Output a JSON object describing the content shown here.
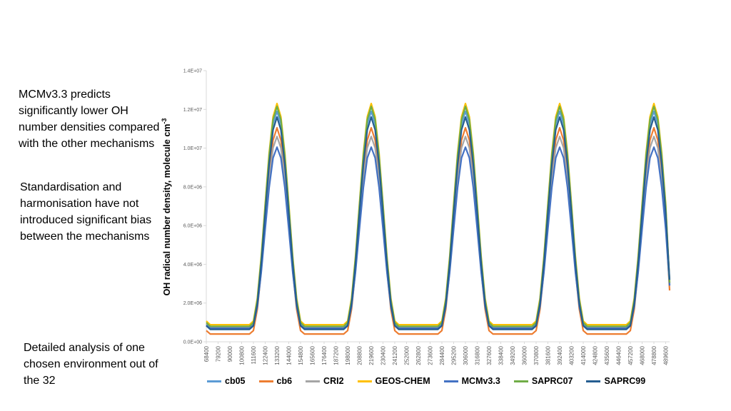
{
  "notes": {
    "n1": "MCMv3.3 predicts significantly lower OH number densities compared with the other mechanisms",
    "n2": "Standardisation and harmonisation have not introduced significant bias between the mechanisms",
    "n3": "Detailed analysis of one chosen environment out of the 32"
  },
  "chart_data": {
    "type": "line",
    "title": "",
    "xlabel": "",
    "ylabel": "OH radical number density, molecule cm",
    "ylabel_sup": "-3",
    "ylim": [
      0,
      14000000
    ],
    "yticks": [
      0,
      2000000,
      4000000,
      6000000,
      8000000,
      10000000,
      12000000,
      14000000
    ],
    "ytick_labels": [
      "0.0E+00",
      "2.0E+06",
      "4.0E+06",
      "6.0E+06",
      "8.0E+06",
      "1.0E+07",
      "1.2E+07",
      "1.4E+07"
    ],
    "x_start": 68400,
    "x_step": 3600,
    "x_end": 493200,
    "xtick_labels": [
      "68400",
      "79200",
      "90000",
      "100800",
      "111600",
      "122400",
      "133200",
      "144000",
      "154800",
      "165600",
      "176400",
      "187200",
      "198000",
      "208800",
      "219600",
      "230400",
      "241200",
      "252000",
      "262800",
      "273600",
      "284400",
      "295200",
      "306000",
      "316800",
      "327600",
      "338400",
      "349200",
      "360000",
      "370800",
      "381600",
      "392400",
      "403200",
      "414000",
      "424800",
      "435600",
      "446400",
      "457200",
      "468000",
      "478800",
      "489600"
    ],
    "grid": false,
    "legend_position": "bottom",
    "peak_time_of_day": 46800,
    "period": 86400,
    "series": [
      {
        "name": "cb05",
        "color": "#5b9bd5",
        "peak": 11900000,
        "night": 720000,
        "end": 2950000
      },
      {
        "name": "cb6",
        "color": "#ed7d31",
        "peak": 11050000,
        "night": 400000,
        "end": 2650000
      },
      {
        "name": "CRI2",
        "color": "#a5a5a5",
        "peak": 10600000,
        "night": 760000,
        "end": 2950000
      },
      {
        "name": "GEOS-CHEM",
        "color": "#ffc000",
        "peak": 12300000,
        "night": 880000,
        "end": 3050000
      },
      {
        "name": "MCMv3.3",
        "color": "#4472c4",
        "peak": 10050000,
        "night": 700000,
        "end": 2900000
      },
      {
        "name": "SAPRC07",
        "color": "#70ad47",
        "peak": 12150000,
        "night": 800000,
        "end": 3050000
      },
      {
        "name": "SAPRC99",
        "color": "#255e91",
        "peak": 11600000,
        "night": 640000,
        "end": 3200000
      }
    ]
  }
}
